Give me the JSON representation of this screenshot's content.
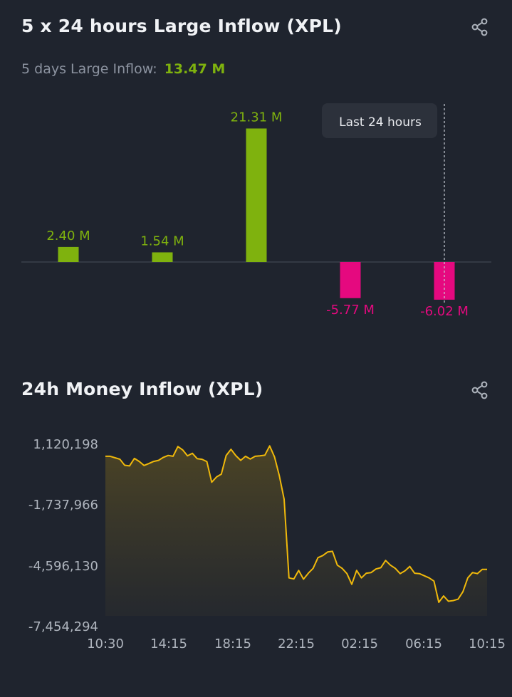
{
  "section1": {
    "title": "5 x 24 hours Large Inflow (XPL)",
    "subtitle_label": "5 days Large Inflow:",
    "subtitle_value": "13.47 M",
    "share_icon": "share-icon"
  },
  "section2": {
    "title": "24h Money Inflow (XPL)",
    "share_icon": "share-icon"
  },
  "colors": {
    "positive": "#7fb20e",
    "negative": "#e5097f",
    "line": "#f0b90b",
    "background": "#1f242e"
  },
  "chart_data": [
    {
      "type": "bar",
      "categories": [
        "",
        "",
        "",
        "",
        ""
      ],
      "values": [
        2.4,
        1.54,
        21.31,
        -5.77,
        -6.02
      ],
      "value_labels": [
        "2.40 M",
        "1.54 M",
        "21.31 M",
        "-5.77 M",
        "-6.02 M"
      ],
      "unit": "M",
      "annotation": "Last 24 hours",
      "grid": false
    },
    {
      "type": "area",
      "x_ticks": [
        "10:30",
        "14:15",
        "18:15",
        "22:15",
        "02:15",
        "06:15",
        "10:15"
      ],
      "y_ticks": [
        "1,120,198",
        "-1,737,966",
        "-4,596,130",
        "-7,454,294"
      ],
      "ylim": [
        -7454294,
        1120198
      ],
      "grid": false,
      "values": [
        520000,
        520000,
        450000,
        380000,
        100000,
        70000,
        420000,
        280000,
        90000,
        180000,
        280000,
        330000,
        470000,
        560000,
        520000,
        980000,
        820000,
        540000,
        660000,
        410000,
        380000,
        270000,
        -700000,
        -450000,
        -320000,
        560000,
        850000,
        550000,
        330000,
        520000,
        390000,
        520000,
        540000,
        570000,
        1010000,
        490000,
        -400000,
        -1500000,
        -5200000,
        -5250000,
        -4850000,
        -5260000,
        -4980000,
        -4750000,
        -4250000,
        -4150000,
        -3980000,
        -3950000,
        -4600000,
        -4750000,
        -5000000,
        -5500000,
        -4850000,
        -5200000,
        -4980000,
        -4950000,
        -4780000,
        -4720000,
        -4380000,
        -4600000,
        -4750000,
        -5000000,
        -4870000,
        -4660000,
        -4980000,
        -5000000,
        -5100000,
        -5200000,
        -5350000,
        -6350000,
        -6050000,
        -6300000,
        -6270000,
        -6200000,
        -5850000,
        -5200000,
        -4950000,
        -5000000,
        -4800000,
        -4800000
      ]
    }
  ]
}
